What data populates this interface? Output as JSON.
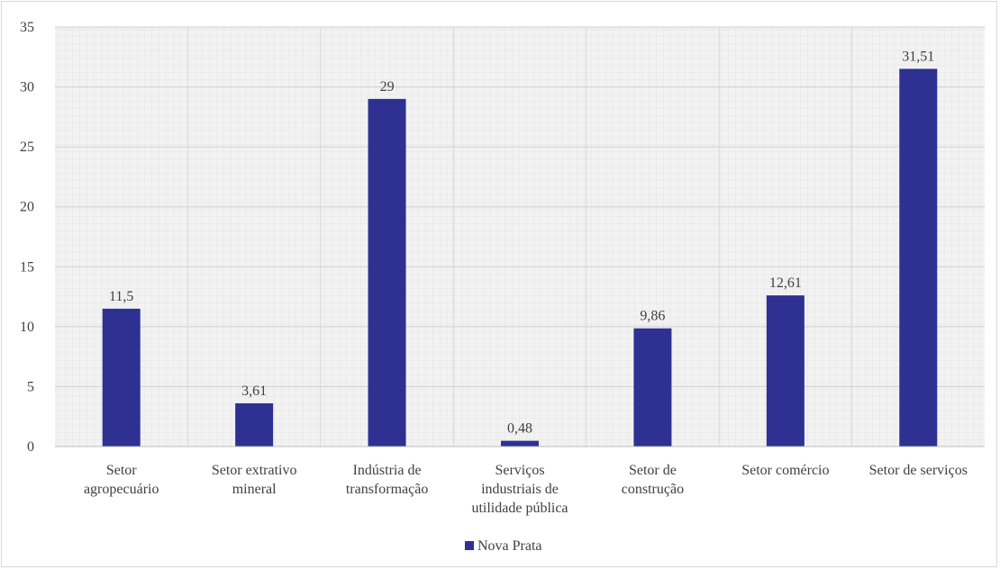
{
  "chart_data": {
    "type": "bar",
    "title": "",
    "xlabel": "",
    "ylabel": "",
    "ylim": [
      0,
      35
    ],
    "yticks": [
      0,
      5,
      10,
      15,
      20,
      25,
      30,
      35
    ],
    "grid": true,
    "legend_position": "bottom",
    "categories": [
      [
        "Setor",
        "agropecuário"
      ],
      [
        "Setor extrativo",
        "mineral"
      ],
      [
        "Indústria de",
        "transformação"
      ],
      [
        "Serviços",
        "industriais de",
        "utilidade pública"
      ],
      [
        "Setor de",
        "construção"
      ],
      [
        "Setor comércio"
      ],
      [
        "Setor de serviços"
      ]
    ],
    "series": [
      {
        "name": "Nova Prata",
        "color": "#2e3192",
        "values": [
          11.5,
          3.61,
          29,
          0.48,
          9.86,
          12.61,
          31.51
        ],
        "labels": [
          "11,5",
          "3,61",
          "29",
          "0,48",
          "9,86",
          "12,61",
          "31,51"
        ]
      }
    ],
    "plot_background": "#f2f2f2"
  }
}
